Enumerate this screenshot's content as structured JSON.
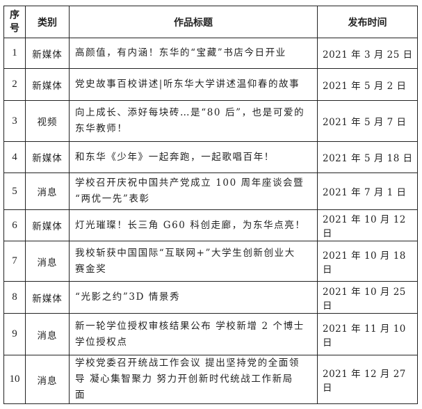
{
  "headers": {
    "seq": "序号",
    "seq_line1": "序",
    "seq_line2": "号",
    "category": "类别",
    "title": "作品标题",
    "date": "发布时间"
  },
  "rows": [
    {
      "no": "1",
      "category": "新媒体",
      "title": [
        "高颜值，有内涵！东华的“宝藏”书店今日开业"
      ],
      "date": "2021 年 3 月 25 日"
    },
    {
      "no": "2",
      "category": "新媒体",
      "title": [
        "党史故事百校讲述|听东华大学讲述温仰春的故事"
      ],
      "date": "2021 年 5 月 2 日"
    },
    {
      "no": "3",
      "category": "视频",
      "title": [
        "向上成长、添好每块砖…是“80 后”，也是可爱的",
        "东华教师！"
      ],
      "date": "2021 年 5 月 7 日"
    },
    {
      "no": "4",
      "category": "新媒体",
      "title": [
        "和东华《少年》一起奔跑，一起歌唱百年！"
      ],
      "date": "2021 年 5 月 18 日"
    },
    {
      "no": "5",
      "category": "消息",
      "title": [
        "学校召开庆祝中国共产党成立 100 周年座谈会暨",
        "“两优一先”表彰"
      ],
      "date": "2021 年 7 月 1 日"
    },
    {
      "no": "6",
      "category": "新媒体",
      "title": [
        "灯光璀璨！长三角 G60 科创走廊，为东华点亮！"
      ],
      "date": "2021 年 10 月 12 日"
    },
    {
      "no": "7",
      "category": "消息",
      "title": [
        "我校斩获中国国际“互联网+”大学生创新创业大",
        "赛金奖"
      ],
      "date": "2021 年 10 月 18 日"
    },
    {
      "no": "8",
      "category": "新媒体",
      "title": [
        "“光影之约”3D 情景秀"
      ],
      "date": "2021 年 10 月 25 日"
    },
    {
      "no": "9",
      "category": "消息",
      "title": [
        "新一轮学位授权审核结果公布 学校新增 2 个博士",
        "学位授权点"
      ],
      "date": "2021 年 11 月 10 日"
    },
    {
      "no": "10",
      "category": "消息",
      "title": [
        "学校党委召开统战工作会议 提出坚持党的全面领",
        "导 凝心集智聚力 努力开创新时代统战工作新局",
        "面"
      ],
      "date": "2021 年 12 月 27 日"
    }
  ]
}
